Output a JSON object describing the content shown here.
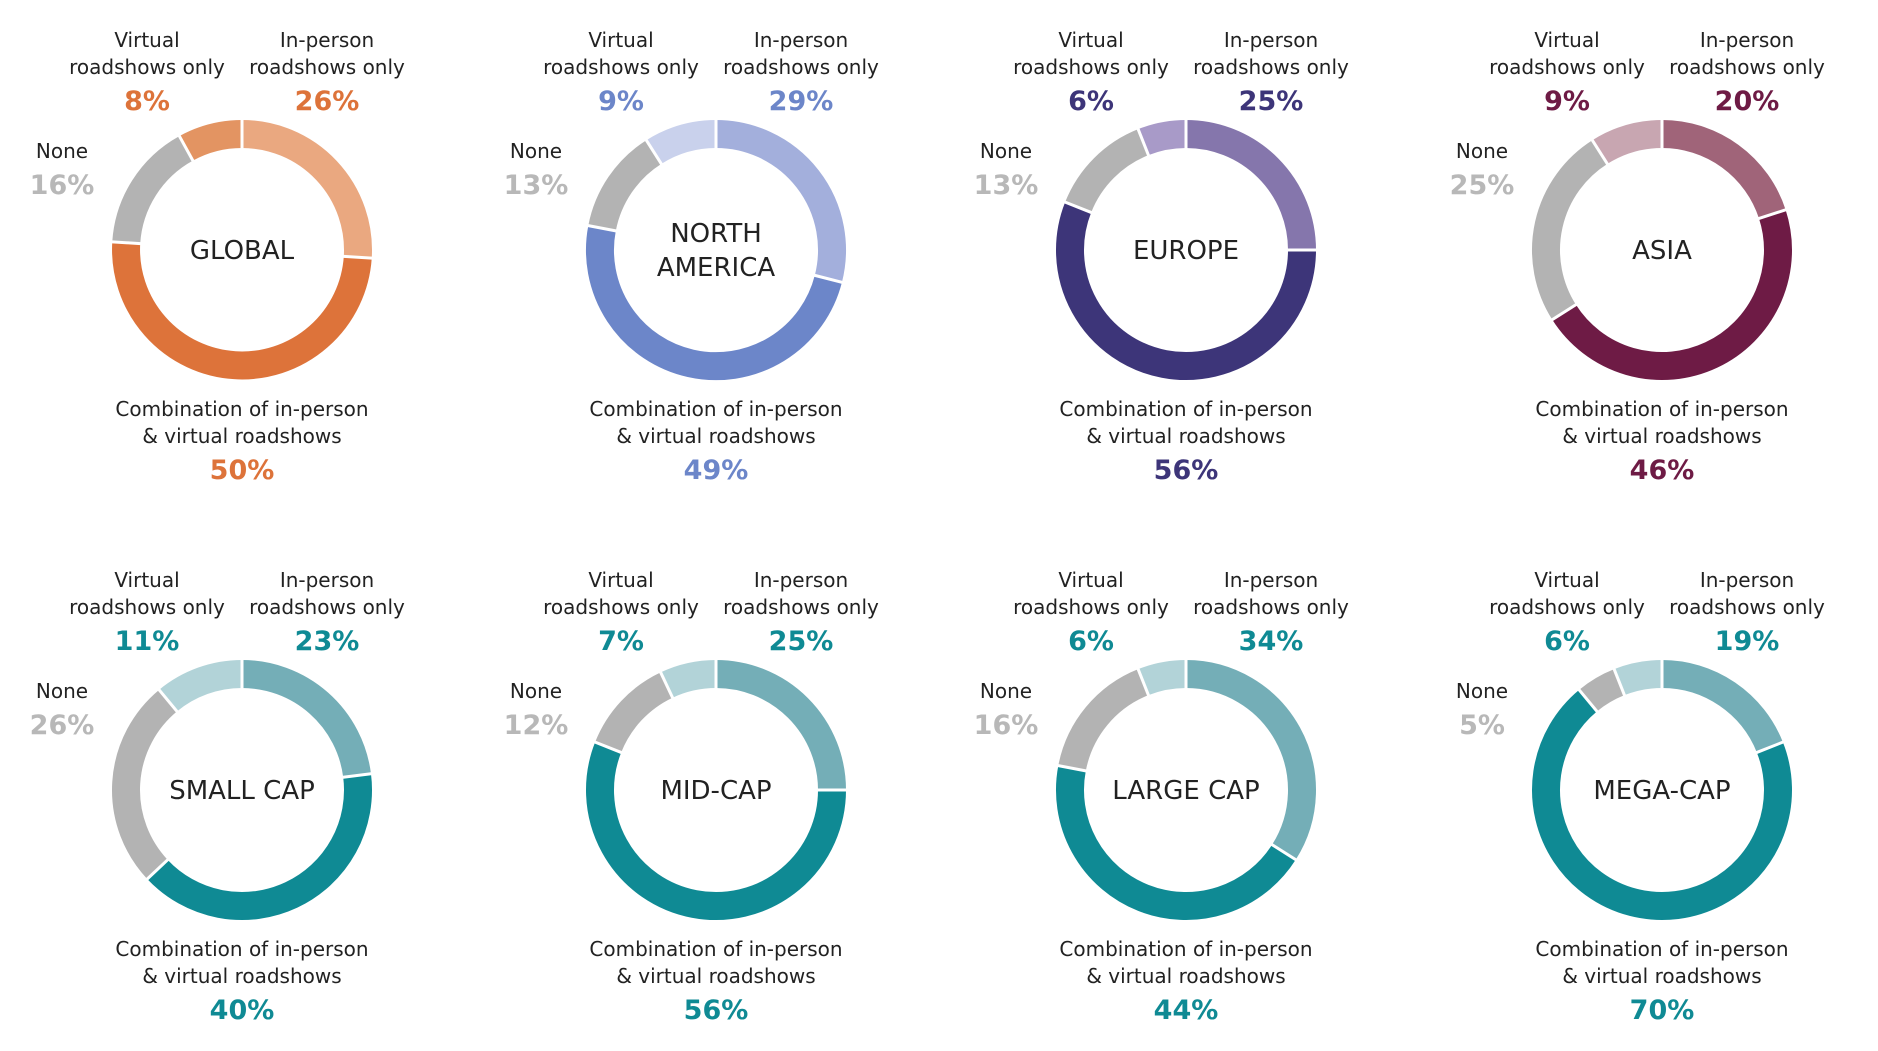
{
  "labels": {
    "virtual": [
      "Virtual",
      "roadshows only"
    ],
    "inperson": [
      "In-person",
      "roadshows only"
    ],
    "none": "None",
    "combination": [
      "Combination of in-person",
      "& virtual roadshows"
    ]
  },
  "chart_data": [
    {
      "type": "pie",
      "title": "GLOBAL",
      "categories": [
        "In-person roadshows only",
        "Combination of in-person & virtual roadshows",
        "None",
        "Virtual roadshows only"
      ],
      "values": [
        26,
        50,
        16,
        8
      ],
      "value_labels": [
        "26%",
        "50%",
        "16%",
        "8%"
      ],
      "colors": [
        "#EAA880",
        "#DD733A",
        "#B3B3B3",
        "#E39462"
      ],
      "accent": "#DD733A"
    },
    {
      "type": "pie",
      "title": [
        "NORTH",
        "AMERICA"
      ],
      "categories": [
        "In-person roadshows only",
        "Combination of in-person & virtual roadshows",
        "None",
        "Virtual roadshows only"
      ],
      "values": [
        29,
        49,
        13,
        9
      ],
      "value_labels": [
        "29%",
        "49%",
        "13%",
        "9%"
      ],
      "colors": [
        "#A3AFDC",
        "#6C86C9",
        "#B3B3B3",
        "#C9D1EC"
      ],
      "accent": "#6C86C9"
    },
    {
      "type": "pie",
      "title": "EUROPE",
      "categories": [
        "In-person roadshows only",
        "Combination of in-person & virtual roadshows",
        "None",
        "Virtual roadshows only"
      ],
      "values": [
        25,
        56,
        13,
        6
      ],
      "value_labels": [
        "25%",
        "56%",
        "13%",
        "6%"
      ],
      "colors": [
        "#8576AC",
        "#3D3579",
        "#B3B3B3",
        "#A89AC8"
      ],
      "accent": "#3D3579"
    },
    {
      "type": "pie",
      "title": "ASIA",
      "categories": [
        "In-person roadshows only",
        "Combination of in-person & virtual roadshows",
        "None",
        "Virtual roadshows only"
      ],
      "values": [
        20,
        46,
        25,
        9
      ],
      "value_labels": [
        "20%",
        "46%",
        "25%",
        "9%"
      ],
      "colors": [
        "#A06479",
        "#6E1B45",
        "#B3B3B3",
        "#C8A6B1"
      ],
      "accent": "#6E1B45"
    },
    {
      "type": "pie",
      "title": "SMALL CAP",
      "categories": [
        "In-person roadshows only",
        "Combination of in-person & virtual roadshows",
        "None",
        "Virtual roadshows only"
      ],
      "values": [
        23,
        40,
        26,
        11
      ],
      "value_labels": [
        "23%",
        "40%",
        "26%",
        "11%"
      ],
      "colors": [
        "#74AEB7",
        "#0F8A94",
        "#B3B3B3",
        "#B2D3D8"
      ],
      "accent": "#0F8A94"
    },
    {
      "type": "pie",
      "title": "MID-CAP",
      "categories": [
        "In-person roadshows only",
        "Combination of in-person & virtual roadshows",
        "None",
        "Virtual roadshows only"
      ],
      "values": [
        25,
        56,
        12,
        7
      ],
      "value_labels": [
        "25%",
        "56%",
        "12%",
        "7%"
      ],
      "colors": [
        "#74AEB7",
        "#0F8A94",
        "#B3B3B3",
        "#B2D3D8"
      ],
      "accent": "#0F8A94"
    },
    {
      "type": "pie",
      "title": "LARGE CAP",
      "categories": [
        "In-person roadshows only",
        "Combination of in-person & virtual roadshows",
        "None",
        "Virtual roadshows only"
      ],
      "values": [
        34,
        44,
        16,
        6
      ],
      "value_labels": [
        "34%",
        "44%",
        "16%",
        "6%"
      ],
      "colors": [
        "#74AEB7",
        "#0F8A94",
        "#B3B3B3",
        "#B2D3D8"
      ],
      "accent": "#0F8A94"
    },
    {
      "type": "pie",
      "title": "MEGA-CAP",
      "categories": [
        "In-person roadshows only",
        "Combination of in-person & virtual roadshows",
        "None",
        "Virtual roadshows only"
      ],
      "values": [
        19,
        70,
        5,
        6
      ],
      "value_labels": [
        "19%",
        "70%",
        "5%",
        "6%"
      ],
      "colors": [
        "#74AEB7",
        "#0F8A94",
        "#B3B3B3",
        "#B2D3D8"
      ],
      "accent": "#0F8A94"
    }
  ],
  "style": {
    "none_value_color": "#B8B8B8",
    "label_color": "#222222"
  }
}
